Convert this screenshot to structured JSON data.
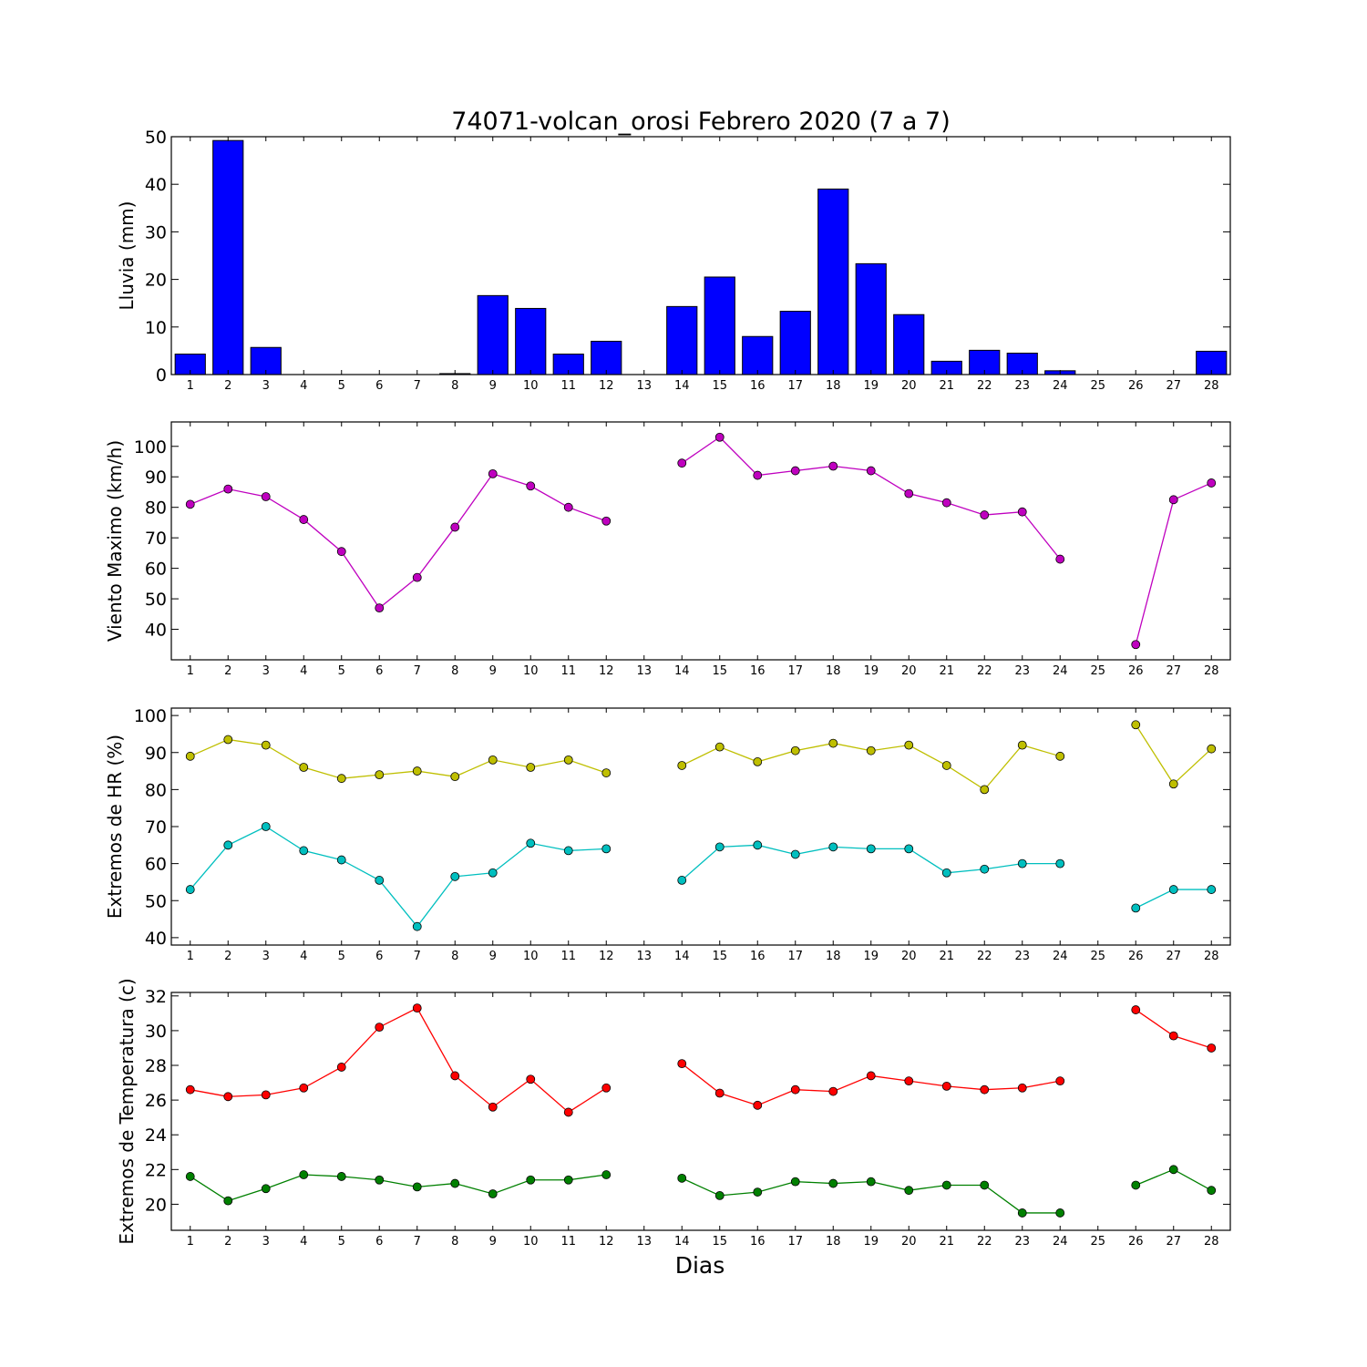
{
  "title": "74071-volcan_orosi Febrero 2020  (7 a 7)",
  "xlabel": "Dias",
  "chart_data": [
    {
      "type": "bar",
      "ylabel": "Lluvia (mm)",
      "categories": [
        "1",
        "2",
        "3",
        "4",
        "5",
        "6",
        "7",
        "8",
        "9",
        "10",
        "11",
        "12",
        "13",
        "14",
        "15",
        "16",
        "17",
        "18",
        "19",
        "20",
        "21",
        "22",
        "23",
        "24",
        "25",
        "26",
        "27",
        "28"
      ],
      "series": [
        {
          "color": "#0000ff",
          "values": [
            4.3,
            49.2,
            5.7,
            0,
            0,
            0,
            0,
            0.2,
            16.6,
            13.9,
            4.3,
            7.0,
            0,
            14.3,
            20.5,
            8.0,
            13.3,
            39.0,
            23.3,
            12.6,
            2.8,
            5.1,
            4.5,
            0.8,
            0,
            0,
            0,
            4.9
          ]
        }
      ],
      "ylim": [
        0,
        50
      ],
      "yticks": [
        0,
        10,
        20,
        30,
        40,
        50
      ],
      "grid": false
    },
    {
      "type": "line",
      "ylabel": "Viento Maximo (km/h)",
      "x": [
        1,
        2,
        3,
        4,
        5,
        6,
        7,
        8,
        9,
        10,
        11,
        12,
        13,
        14,
        15,
        16,
        17,
        18,
        19,
        20,
        21,
        22,
        23,
        24,
        25,
        26,
        27,
        28
      ],
      "series": [
        {
          "color": "#bf00bf",
          "values": [
            81,
            86,
            83.5,
            76,
            65.5,
            47,
            57,
            73.5,
            91,
            87,
            80,
            75.5,
            null,
            94.5,
            103,
            90.5,
            92,
            93.5,
            92,
            84.5,
            81.5,
            77.5,
            78.5,
            63,
            null,
            35,
            82.5,
            88
          ]
        }
      ],
      "ylim": [
        30,
        108
      ],
      "yticks": [
        40,
        50,
        60,
        70,
        80,
        90,
        100
      ],
      "grid": false
    },
    {
      "type": "line",
      "ylabel": "Extremos de HR (%)",
      "x": [
        1,
        2,
        3,
        4,
        5,
        6,
        7,
        8,
        9,
        10,
        11,
        12,
        13,
        14,
        15,
        16,
        17,
        18,
        19,
        20,
        21,
        22,
        23,
        24,
        25,
        26,
        27,
        28
      ],
      "series": [
        {
          "color": "#bfbf00",
          "values": [
            89,
            93.5,
            92,
            86,
            83,
            84,
            85,
            83.5,
            88,
            86,
            88,
            84.5,
            null,
            86.5,
            91.5,
            87.5,
            90.5,
            92.5,
            90.5,
            92,
            86.5,
            80,
            92,
            89,
            null,
            97.5,
            81.5,
            91
          ]
        },
        {
          "color": "#00bfbf",
          "values": [
            53,
            65,
            70,
            63.5,
            61,
            55.5,
            43,
            56.5,
            57.5,
            65.5,
            63.5,
            64,
            null,
            55.5,
            64.5,
            65,
            62.5,
            64.5,
            64,
            64,
            57.5,
            58.5,
            60,
            60,
            null,
            48,
            53,
            53
          ]
        }
      ],
      "ylim": [
        38,
        102
      ],
      "yticks": [
        40,
        50,
        60,
        70,
        80,
        90,
        100
      ],
      "grid": false
    },
    {
      "type": "line",
      "ylabel": "Extremos de Temperatura (c)",
      "x": [
        1,
        2,
        3,
        4,
        5,
        6,
        7,
        8,
        9,
        10,
        11,
        12,
        13,
        14,
        15,
        16,
        17,
        18,
        19,
        20,
        21,
        22,
        23,
        24,
        25,
        26,
        27,
        28
      ],
      "series": [
        {
          "color": "#ff0000",
          "values": [
            26.6,
            26.2,
            26.3,
            26.7,
            27.9,
            30.2,
            31.3,
            27.4,
            25.6,
            27.2,
            25.3,
            26.7,
            null,
            28.1,
            26.4,
            25.7,
            26.6,
            26.5,
            27.4,
            27.1,
            26.8,
            26.6,
            26.7,
            27.1,
            null,
            31.2,
            29.7,
            29.0
          ]
        },
        {
          "color": "#008000",
          "values": [
            21.6,
            20.2,
            20.9,
            21.7,
            21.6,
            21.4,
            21.0,
            21.2,
            20.6,
            21.4,
            21.4,
            21.7,
            null,
            21.5,
            20.5,
            20.7,
            21.3,
            21.2,
            21.3,
            20.8,
            21.1,
            21.1,
            19.5,
            19.5,
            null,
            21.1,
            22.0,
            20.8
          ]
        }
      ],
      "ylim": [
        18.5,
        32.2
      ],
      "yticks": [
        20,
        22,
        24,
        26,
        28,
        30,
        32
      ],
      "grid": false
    }
  ]
}
